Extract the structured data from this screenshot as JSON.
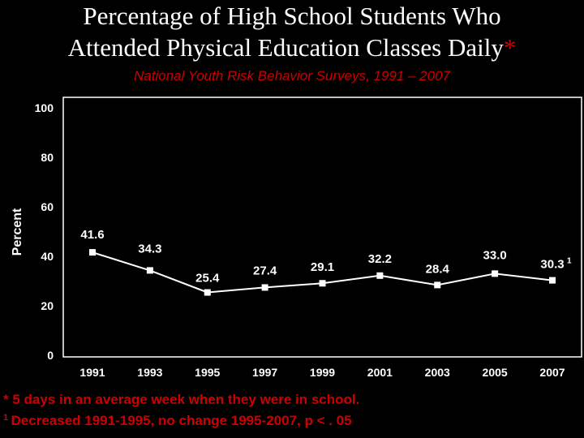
{
  "title_line1": "Percentage of High School Students Who",
  "title_line2": "Attended Physical Education Classes Daily",
  "title_star": "*",
  "subtitle": "National Youth Risk Behavior Surveys, 1991 – 2007",
  "footnote1": "* 5 days in an average week when they were in school.",
  "footnote2_marker": "1",
  "footnote2_text": "Decreased 1991-1995, no change 1995-2007, p < . 05",
  "colors": {
    "background": "#000000",
    "title": "#ffffff",
    "accent": "#cc0000",
    "line": "#ffffff",
    "plot_border": "#ffffff"
  },
  "chart_data": {
    "type": "line",
    "categories": [
      "1991",
      "1993",
      "1995",
      "1997",
      "1999",
      "2001",
      "2003",
      "2005",
      "2007"
    ],
    "series": [
      {
        "values": [
          41.6,
          34.3,
          25.4,
          27.4,
          29.1,
          32.2,
          28.4,
          33.0,
          30.3
        ]
      }
    ],
    "data_labels": [
      "41.6",
      "34.3",
      "25.4",
      "27.4",
      "29.1",
      "32.2",
      "28.4",
      "33.0",
      "30.3"
    ],
    "last_label_superscript": "1",
    "ylabel": "Percent",
    "xlabel": "",
    "ylim": [
      0,
      100
    ],
    "yticks": [
      "0",
      "20",
      "40",
      "60",
      "80",
      "100"
    ],
    "grid": false,
    "marker": "square"
  }
}
